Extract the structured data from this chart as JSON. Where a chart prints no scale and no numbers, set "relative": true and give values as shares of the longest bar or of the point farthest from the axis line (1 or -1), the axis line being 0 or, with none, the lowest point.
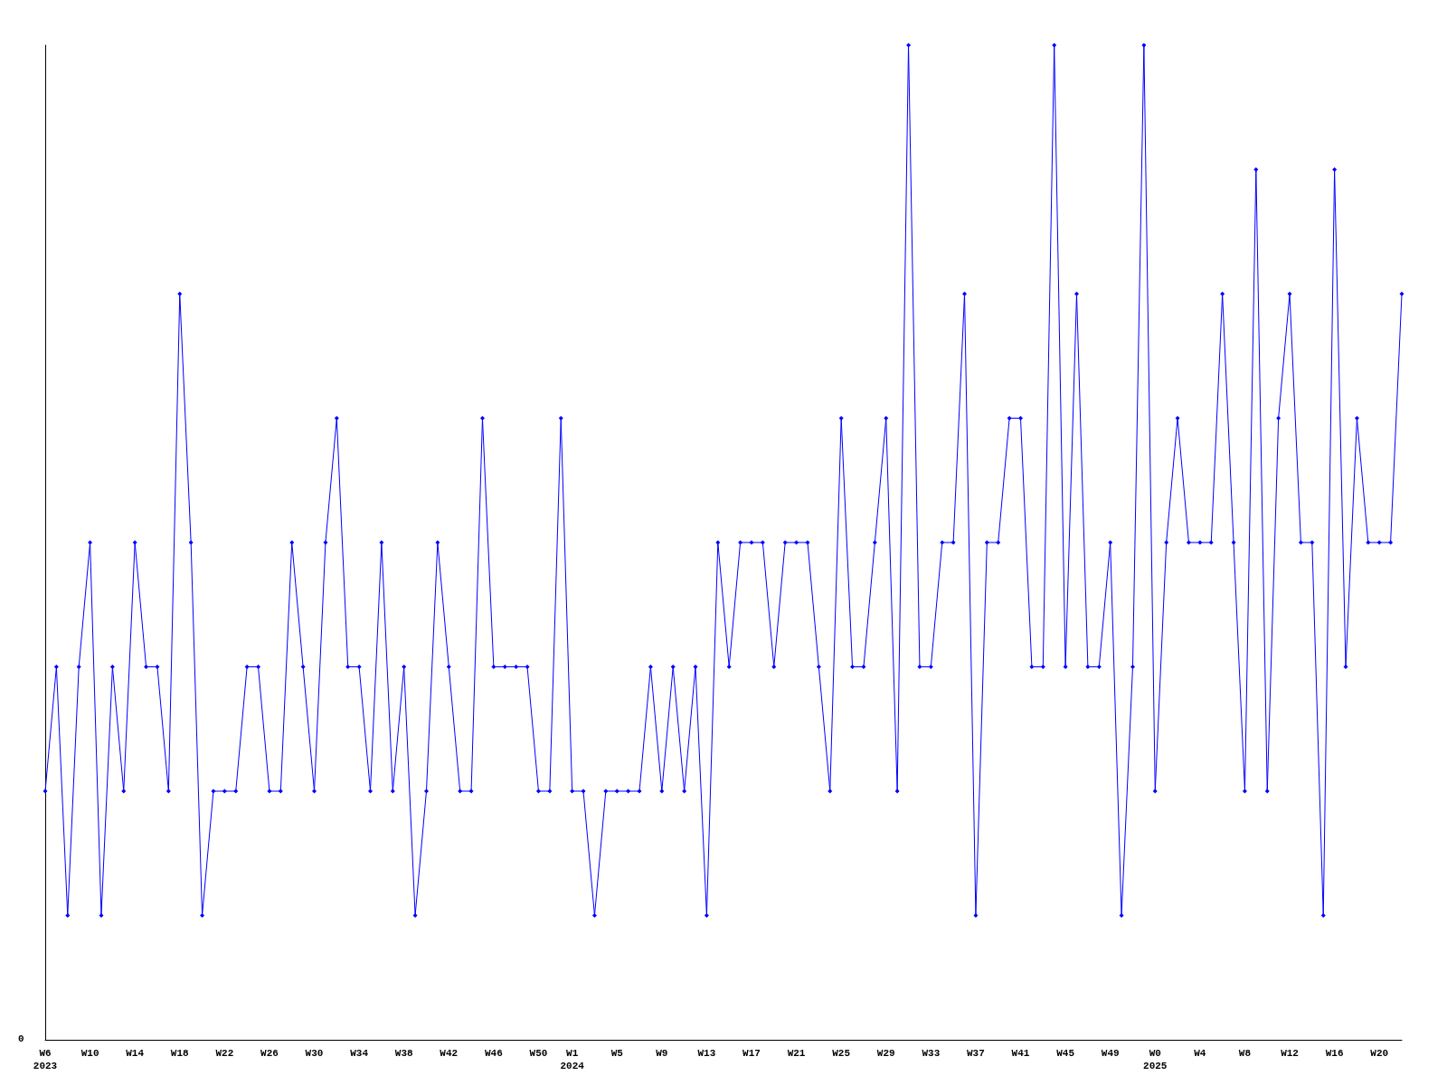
{
  "chart_data": {
    "type": "line",
    "relative": true,
    "color": "#0000ff",
    "marker": "diamond",
    "grid": false,
    "categories": [
      "W6\n2023",
      null,
      null,
      null,
      "W10",
      null,
      null,
      null,
      "W14",
      null,
      null,
      null,
      "W18",
      null,
      null,
      null,
      "W22",
      null,
      null,
      null,
      "W26",
      null,
      null,
      null,
      "W30",
      null,
      null,
      null,
      "W34",
      null,
      null,
      null,
      "W38",
      null,
      null,
      null,
      "W42",
      null,
      null,
      null,
      "W46",
      null,
      null,
      null,
      "W50",
      null,
      null,
      "W1\n2024",
      null,
      null,
      null,
      "W5",
      null,
      null,
      null,
      "W9",
      null,
      null,
      null,
      "W13",
      null,
      null,
      null,
      "W17",
      null,
      null,
      null,
      "W21",
      null,
      null,
      null,
      "W25",
      null,
      null,
      null,
      "W29",
      null,
      null,
      null,
      "W33",
      null,
      null,
      null,
      "W37",
      null,
      null,
      null,
      "W41",
      null,
      null,
      null,
      "W45",
      null,
      null,
      null,
      "W49",
      null,
      null,
      null,
      "W0\n2025",
      null,
      null,
      null,
      "W4",
      null,
      null,
      null,
      "W8",
      null,
      null,
      null,
      "W12",
      null,
      null,
      null,
      "W16",
      null,
      null,
      null,
      "W20",
      null,
      null
    ],
    "values": [
      0.25,
      0.375,
      0.125,
      0.375,
      0.5,
      0.125,
      0.375,
      0.25,
      0.5,
      0.375,
      0.375,
      0.25,
      0.75,
      0.5,
      0.125,
      0.25,
      0.25,
      0.25,
      0.375,
      0.375,
      0.25,
      0.25,
      0.5,
      0.375,
      0.25,
      0.5,
      0.625,
      0.375,
      0.375,
      0.25,
      0.5,
      0.25,
      0.375,
      0.125,
      0.25,
      0.5,
      0.375,
      0.25,
      0.25,
      0.625,
      0.375,
      0.375,
      0.375,
      0.375,
      0.25,
      0.25,
      0.625,
      0.25,
      0.25,
      0.125,
      0.25,
      0.25,
      0.25,
      0.25,
      0.375,
      0.25,
      0.375,
      0.25,
      0.375,
      0.125,
      0.5,
      0.375,
      0.5,
      0.5,
      0.5,
      0.375,
      0.5,
      0.5,
      0.5,
      0.375,
      0.25,
      0.625,
      0.375,
      0.375,
      0.5,
      0.625,
      0.25,
      1,
      0.375,
      0.375,
      0.5,
      0.5,
      0.75,
      0.125,
      0.5,
      0.5,
      0.625,
      0.625,
      0.375,
      0.375,
      1,
      0.375,
      0.75,
      0.375,
      0.375,
      0.5,
      0.125,
      0.375,
      1,
      0.25,
      0.5,
      0.625,
      0.5,
      0.5,
      0.5,
      0.75,
      0.5,
      0.25,
      0.875,
      0.25,
      0.625,
      0.75,
      0.5,
      0.5,
      0.125,
      0.875,
      0.375,
      0.625,
      0.5,
      0.5,
      0.5,
      0.75
    ],
    "annotations": [
      "0"
    ]
  }
}
